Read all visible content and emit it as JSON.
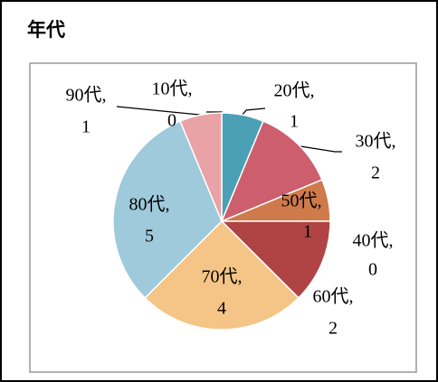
{
  "chart_data": {
    "type": "pie",
    "title": "年代",
    "categories": [
      "10代,",
      "20代,",
      "30代,",
      "40代,",
      "50代,",
      "60代,",
      "70代,",
      "80代,",
      "90代,"
    ],
    "values": [
      0,
      1,
      2,
      0,
      1,
      2,
      4,
      5,
      1
    ],
    "colors": [
      "#4f81bd",
      "#4ba0b6",
      "#cd5e6e",
      "#9bbb59",
      "#cf7a4a",
      "#b04444",
      "#f4c586",
      "#9ecadb",
      "#e9a2a6"
    ]
  }
}
